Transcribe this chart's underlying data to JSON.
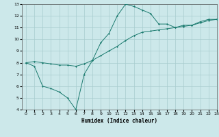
{
  "xlabel": "Humidex (Indice chaleur)",
  "ylabel": "",
  "bg_color": "#cce8ea",
  "grid_color": "#a8ccce",
  "line_color": "#1a7a6e",
  "x_data": [
    0,
    1,
    2,
    3,
    4,
    5,
    6,
    7,
    8,
    9,
    10,
    11,
    12,
    13,
    14,
    15,
    16,
    17,
    18,
    19,
    20,
    21,
    22,
    23
  ],
  "y_zigzag": [
    8.0,
    7.7,
    6.0,
    5.8,
    5.5,
    5.0,
    4.0,
    7.0,
    8.2,
    9.7,
    10.5,
    12.0,
    13.0,
    12.8,
    12.5,
    12.2,
    11.3,
    11.3,
    11.0,
    11.2,
    11.2,
    11.5,
    11.7,
    11.7
  ],
  "y_smooth": [
    8.0,
    8.1,
    8.0,
    7.9,
    7.8,
    7.8,
    7.7,
    7.9,
    8.2,
    8.6,
    9.0,
    9.4,
    9.9,
    10.3,
    10.6,
    10.7,
    10.8,
    10.9,
    11.0,
    11.1,
    11.2,
    11.4,
    11.6,
    11.7
  ],
  "ylim": [
    4,
    13
  ],
  "xlim": [
    -0.5,
    23
  ],
  "yticks": [
    4,
    5,
    6,
    7,
    8,
    9,
    10,
    11,
    12,
    13
  ],
  "xticks": [
    0,
    1,
    2,
    3,
    4,
    5,
    6,
    7,
    8,
    9,
    10,
    11,
    12,
    13,
    14,
    15,
    16,
    17,
    18,
    19,
    20,
    21,
    22,
    23
  ],
  "tick_fontsize": 4.5,
  "xlabel_fontsize": 5.5
}
